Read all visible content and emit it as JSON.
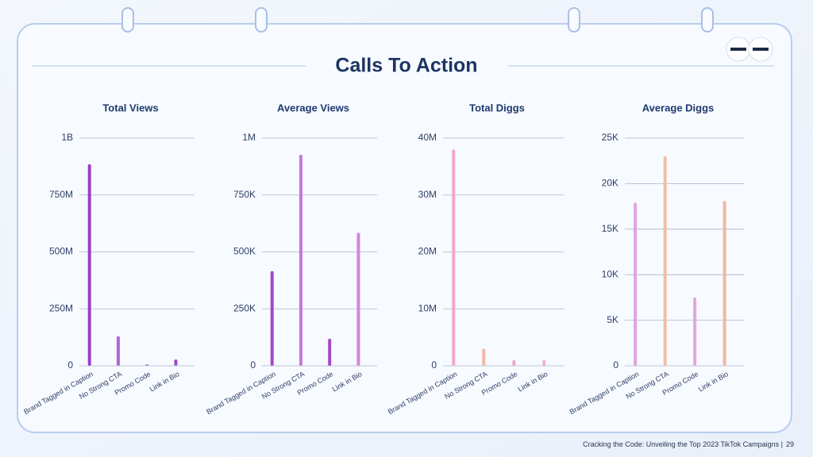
{
  "title": "Calls To Action",
  "footer": "Cracking the Code: Unveiling the Top 2023 TikTok Campaigns |",
  "page_number": 29,
  "chart_data": [
    {
      "type": "bar",
      "title": "Total Views",
      "categories": [
        "Brand Tagged in Caption",
        "No Strong CTA",
        "Promo Code",
        "Link in Bio"
      ],
      "values": [
        885000000,
        130000000,
        7000000,
        28000000
      ],
      "colors": [
        "#9a3fc6",
        "#b266d6",
        "#b88ad8",
        "#9d4ac9"
      ],
      "ylim": [
        0,
        1000000000
      ],
      "yticks": [
        0,
        {
          "value": 250000000,
          "label": "250M"
        },
        {
          "value": 500000000,
          "label": "500M"
        },
        {
          "value": 750000000,
          "label": "750M"
        },
        {
          "value": 1000000000,
          "label": "1B"
        }
      ],
      "grid": true
    },
    {
      "type": "bar",
      "title": "Average Views",
      "categories": [
        "Brand Tagged in Caption",
        "No Strong CTA",
        "Promo Code",
        "Link in Bio"
      ],
      "values": [
        416000,
        927000,
        119000,
        584000
      ],
      "colors": [
        "#a447cc",
        "#c47ad8",
        "#a24ac8",
        "#cf86dc"
      ],
      "ylim": [
        0,
        1000000
      ],
      "yticks": [
        0,
        {
          "value": 250000,
          "label": "250K"
        },
        {
          "value": 500000,
          "label": "500K"
        },
        {
          "value": 750000,
          "label": "750K"
        },
        {
          "value": 1000000,
          "label": "1M"
        }
      ],
      "grid": true
    },
    {
      "type": "bar",
      "title": "Total Diggs",
      "categories": [
        "Brand Tagged in Caption",
        "No Strong CTA",
        "Promo Code",
        "Link in Bio"
      ],
      "values": [
        38000000,
        3000000,
        1000000,
        1000000
      ],
      "colors": [
        "#f0a9c6",
        "#f3b8a6",
        "#eeaac4",
        "#efb2c8"
      ],
      "ylim": [
        0,
        40000000
      ],
      "yticks": [
        0,
        {
          "value": 10000000,
          "label": "10M"
        },
        {
          "value": 20000000,
          "label": "20M"
        },
        {
          "value": 30000000,
          "label": "30M"
        },
        {
          "value": 40000000,
          "label": "40M"
        }
      ],
      "grid": true
    },
    {
      "type": "bar",
      "title": "Average Diggs",
      "categories": [
        "Brand Tagged in Caption",
        "No Strong CTA",
        "Promo Code",
        "Link in Bio"
      ],
      "values": [
        17900,
        23000,
        7500,
        18100
      ],
      "colors": [
        "#e2a2e0",
        "#f4bd9f",
        "#e4a8d8",
        "#f2b7a4"
      ],
      "ylim": [
        0,
        25000
      ],
      "yticks": [
        0,
        {
          "value": 5000,
          "label": "5K"
        },
        {
          "value": 10000,
          "label": "10K"
        },
        {
          "value": 15000,
          "label": "15K"
        },
        {
          "value": 20000,
          "label": "20K"
        },
        {
          "value": 25000,
          "label": "25K"
        }
      ],
      "grid": true
    }
  ]
}
